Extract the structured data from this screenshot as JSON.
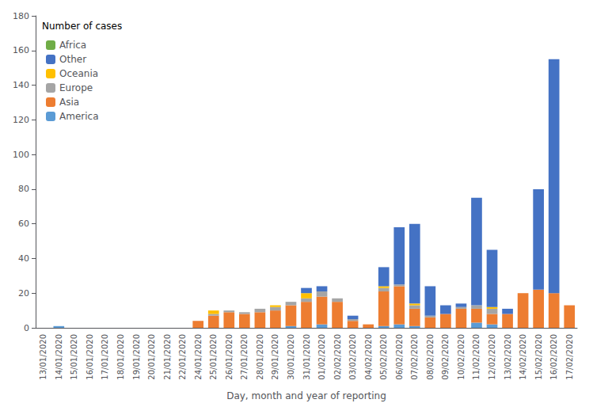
{
  "chart_data": {
    "type": "bar",
    "stacked": true,
    "xlabel": "Day, month and year of reporting",
    "legend_title": "Number of cases",
    "legend": "upper left",
    "grid": false,
    "categories": [
      "13/01/2020",
      "14/01/2020",
      "15/01/2020",
      "16/01/2020",
      "17/01/2020",
      "18/01/2020",
      "19/01/2020",
      "20/01/2020",
      "21/01/2020",
      "22/01/2020",
      "24/01/2020",
      "25/01/2020",
      "26/01/2020",
      "27/01/2020",
      "28/01/2020",
      "29/01/2020",
      "30/01/2020",
      "31/01/2020",
      "01/02/2020",
      "02/02/2020",
      "03/02/2020",
      "04/02/2020",
      "05/02/2020",
      "06/02/2020",
      "07/02/2020",
      "08/02/2020",
      "09/02/2020",
      "10/02/2020",
      "11/02/2020",
      "12/02/2020",
      "13/02/2020",
      "14/02/2020",
      "15/02/2020",
      "16/02/2020",
      "17/02/2020"
    ],
    "series": [
      {
        "name": "America",
        "color": "#5b9bd5",
        "values": [
          0,
          1,
          0,
          0,
          0,
          0,
          0,
          0,
          0,
          0,
          0,
          0,
          0,
          0,
          0,
          0,
          1,
          0,
          2,
          0,
          0,
          0,
          1,
          2,
          1,
          0,
          0,
          0,
          3,
          2,
          0,
          0,
          0,
          0,
          0
        ]
      },
      {
        "name": "Asia",
        "color": "#ed7d31",
        "values": [
          0,
          0,
          0,
          0,
          0,
          0,
          0,
          0,
          0,
          0,
          4,
          7,
          9,
          8,
          9,
          10,
          12,
          15,
          16,
          15,
          4,
          2,
          20,
          22,
          10,
          6,
          8,
          11,
          8,
          6,
          8,
          20,
          22,
          20,
          13
        ]
      },
      {
        "name": "Europe",
        "color": "#a5a5a5",
        "values": [
          0,
          0,
          0,
          0,
          0,
          0,
          0,
          0,
          0,
          0,
          0,
          1,
          1,
          1,
          2,
          2,
          2,
          2,
          3,
          2,
          1,
          0,
          2,
          1,
          2,
          1,
          0,
          1,
          2,
          3,
          0,
          0,
          0,
          0,
          0
        ]
      },
      {
        "name": "Oceania",
        "color": "#ffc000",
        "values": [
          0,
          0,
          0,
          0,
          0,
          0,
          0,
          0,
          0,
          0,
          0,
          2,
          0,
          0,
          0,
          1,
          0,
          3,
          0,
          0,
          0,
          0,
          1,
          0,
          1,
          0,
          0,
          0,
          0,
          1,
          0,
          0,
          0,
          0,
          0
        ]
      },
      {
        "name": "Other",
        "color": "#4472c4",
        "values": [
          0,
          0,
          0,
          0,
          0,
          0,
          0,
          0,
          0,
          0,
          0,
          0,
          0,
          0,
          0,
          0,
          0,
          3,
          3,
          0,
          2,
          0,
          11,
          33,
          46,
          17,
          5,
          2,
          62,
          33,
          3,
          0,
          58,
          135,
          0
        ]
      },
      {
        "name": "Africa",
        "color": "#70ad47",
        "values": [
          0,
          0,
          0,
          0,
          0,
          0,
          0,
          0,
          0,
          0,
          0,
          0,
          0,
          0,
          0,
          0,
          0,
          0,
          0,
          0,
          0,
          0,
          0,
          0,
          0,
          0,
          0,
          0,
          0,
          0,
          0,
          0,
          0,
          0,
          0
        ]
      }
    ],
    "ylim": [
      0,
      180
    ],
    "yticks": [
      0,
      20,
      40,
      60,
      80,
      100,
      120,
      140,
      160,
      180
    ]
  }
}
